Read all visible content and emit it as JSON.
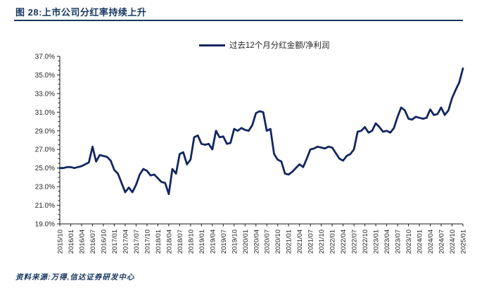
{
  "figure": {
    "title": "图 28:上市公司分红率持续上升",
    "legend_label": "过去12个月分红金额/净利润",
    "source": "资料来源:万得,信达证券研发中心"
  },
  "colors": {
    "line": "#12275f",
    "title_accent": "#17375f",
    "axis": "#1a1a1a",
    "tick_text": "#262626"
  },
  "chart_data": {
    "type": "line",
    "title": "上市公司分红率持续上升",
    "legend": [
      "过去12个月分红金额/净利润"
    ],
    "legend_position": "top-center",
    "grid": false,
    "ylim": [
      19,
      37
    ],
    "y_tick_labels": [
      "37.0%",
      "35.0%",
      "33.0%",
      "31.0%",
      "29.0%",
      "27.0%",
      "25.0%",
      "23.0%",
      "21.0%",
      "19.0%"
    ],
    "x_tick_labels": [
      "2015/10",
      "2016/01",
      "2016/04",
      "2016/07",
      "2016/10",
      "2017/01",
      "2017/04",
      "2017/07",
      "2017/10",
      "2018/01",
      "2018/04",
      "2018/07",
      "2018/10",
      "2019/01",
      "2019/04",
      "2019/07",
      "2019/10",
      "2020/01",
      "2020/04",
      "2020/07",
      "2020/10",
      "2021/01",
      "2021/04",
      "2021/07",
      "2021/10",
      "2022/01",
      "2022/04",
      "2022/07",
      "2022/10",
      "2023/01",
      "2023/04",
      "2023/07",
      "2023/10",
      "2024/01",
      "2024/04",
      "2024/07",
      "2024/10",
      "2025/01"
    ],
    "x_start": "2015/10",
    "x_freq": "monthly",
    "values": [
      25.0,
      25.0,
      25.1,
      25.1,
      25.0,
      25.1,
      25.2,
      25.4,
      25.6,
      27.3,
      25.7,
      26.4,
      26.3,
      26.2,
      25.8,
      24.8,
      24.4,
      23.4,
      22.4,
      22.9,
      22.4,
      23.2,
      24.3,
      24.9,
      24.7,
      24.2,
      24.3,
      23.9,
      23.5,
      23.4,
      22.2,
      24.9,
      24.4,
      26.5,
      26.7,
      25.4,
      25.9,
      28.3,
      28.5,
      27.6,
      27.5,
      27.6,
      27.0,
      29.0,
      28.3,
      28.4,
      27.6,
      27.7,
      29.2,
      29.0,
      29.3,
      29.1,
      29.0,
      29.6,
      30.9,
      31.1,
      31.0,
      29.0,
      29.2,
      26.5,
      25.9,
      25.7,
      24.4,
      24.3,
      24.6,
      25.0,
      25.4,
      25.1,
      26.0,
      27.0,
      27.1,
      27.3,
      27.2,
      27.1,
      27.3,
      27.2,
      26.6,
      26.0,
      25.8,
      26.3,
      26.5,
      27.0,
      28.9,
      29.0,
      29.4,
      28.8,
      29.0,
      29.8,
      29.4,
      28.9,
      29.0,
      28.8,
      29.3,
      30.5,
      31.5,
      31.2,
      30.3,
      30.2,
      30.5,
      30.4,
      30.3,
      30.4,
      31.3,
      30.7,
      30.8,
      31.5,
      30.7,
      31.2,
      32.5,
      33.4,
      34.2,
      35.7
    ]
  }
}
